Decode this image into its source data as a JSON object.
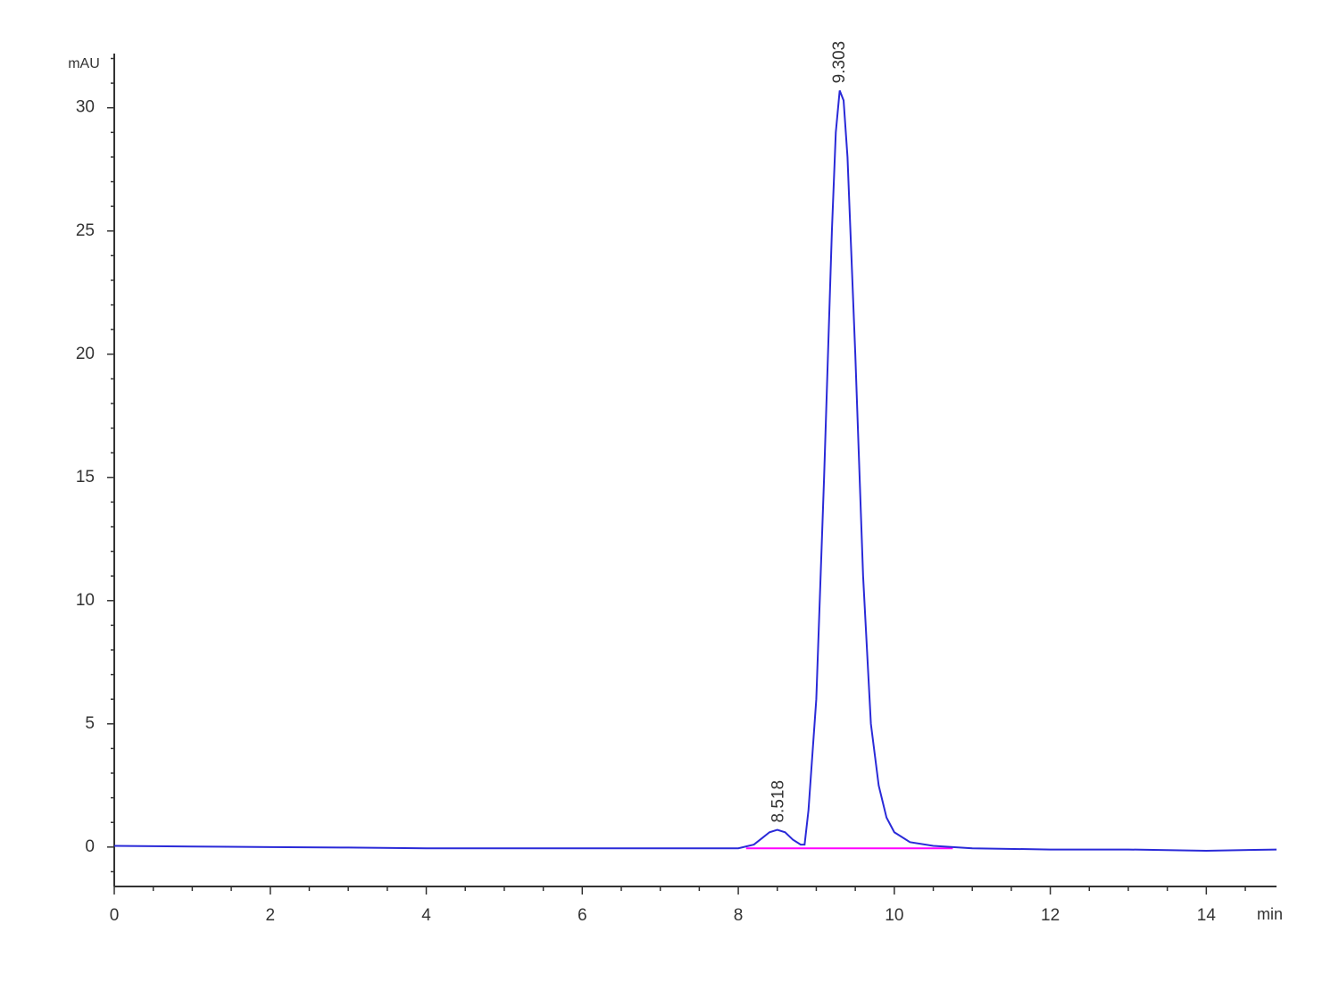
{
  "chart_data": {
    "type": "line",
    "y_label": "mAU",
    "x_label": "min",
    "xlim": [
      0,
      14.9
    ],
    "ylim": [
      -1.6,
      32.2
    ],
    "xticks": [
      0,
      2,
      4,
      6,
      8,
      10,
      12,
      14
    ],
    "yticks": [
      0,
      5,
      10,
      15,
      20,
      25,
      30
    ],
    "xminorticks": [
      0.5,
      1,
      1.5,
      2.5,
      3,
      3.5,
      4.5,
      5,
      5.5,
      6.5,
      7,
      7.5,
      8.5,
      9,
      9.5,
      10.5,
      11,
      11.5,
      12.5,
      13,
      13.5,
      14.5
    ],
    "yminorticks": [
      -1,
      1,
      2,
      3,
      4,
      6,
      7,
      8,
      9,
      11,
      12,
      13,
      14,
      16,
      17,
      18,
      19,
      21,
      22,
      23,
      24,
      26,
      27,
      28,
      29,
      31,
      32
    ],
    "series": [
      {
        "color": "#2a2ad8",
        "x": [
          0,
          1,
          2,
          3,
          4,
          5,
          6,
          7,
          7.5,
          8.0,
          8.2,
          8.3,
          8.4,
          8.5,
          8.6,
          8.7,
          8.8,
          8.85,
          8.9,
          9.0,
          9.1,
          9.2,
          9.25,
          9.3,
          9.35,
          9.4,
          9.5,
          9.6,
          9.7,
          9.8,
          9.9,
          10.0,
          10.2,
          10.5,
          11,
          12,
          13,
          14,
          14.9
        ],
        "values": [
          0.05,
          0.02,
          0,
          -0.02,
          -0.05,
          -0.05,
          -0.05,
          -0.05,
          -0.05,
          -0.05,
          0.1,
          0.35,
          0.6,
          0.7,
          0.6,
          0.3,
          0.1,
          0.1,
          1.5,
          6,
          15,
          25,
          29,
          30.7,
          30.3,
          28,
          20,
          11,
          5,
          2.5,
          1.2,
          0.6,
          0.2,
          0.05,
          -0.05,
          -0.1,
          -0.1,
          -0.15,
          -0.1
        ]
      },
      {
        "color": "#ff00ff",
        "x": [
          8.1,
          10.75
        ],
        "values": [
          -0.05,
          -0.05
        ]
      }
    ],
    "peaks": [
      {
        "x": 8.518,
        "y": 0.7,
        "label": "8.518"
      },
      {
        "x": 9.303,
        "y": 30.7,
        "label": "9.303"
      }
    ]
  }
}
